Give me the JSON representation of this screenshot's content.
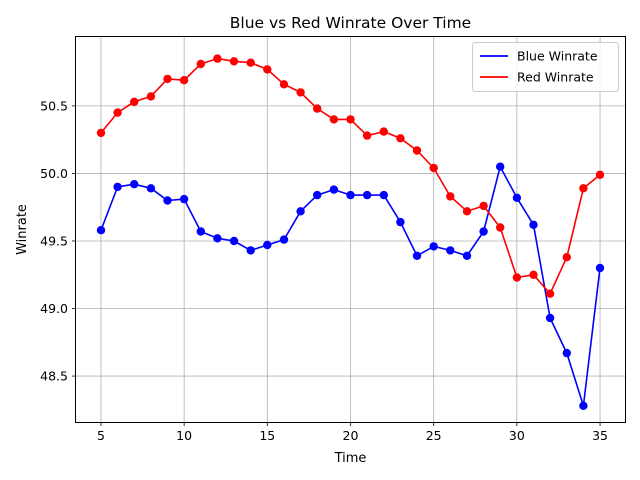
{
  "chart_data": {
    "type": "line",
    "title": "Blue vs Red Winrate Over Time",
    "xlabel": "Time",
    "ylabel": "Winrate",
    "xlim": [
      3.5,
      36.5
    ],
    "ylim": [
      48.16,
      51.01
    ],
    "xticks": [
      5,
      10,
      15,
      20,
      25,
      30,
      35
    ],
    "yticks": [
      48.5,
      49.0,
      49.5,
      50.0,
      50.5
    ],
    "grid": true,
    "legend_position": "top-right",
    "x": [
      5,
      6,
      7,
      8,
      9,
      10,
      11,
      12,
      13,
      14,
      15,
      16,
      17,
      18,
      19,
      20,
      21,
      22,
      23,
      24,
      25,
      26,
      27,
      28,
      29,
      30,
      31,
      32,
      33,
      34,
      35
    ],
    "series": [
      {
        "name": "Blue Winrate",
        "color": "#0000ff",
        "values": [
          49.58,
          49.9,
          49.92,
          49.89,
          49.8,
          49.81,
          49.57,
          49.52,
          49.5,
          49.43,
          49.47,
          49.51,
          49.72,
          49.84,
          49.88,
          49.84,
          49.84,
          49.84,
          49.64,
          49.39,
          49.46,
          49.43,
          49.39,
          49.57,
          50.05,
          49.82,
          49.62,
          48.93,
          48.67,
          48.28,
          49.3
        ]
      },
      {
        "name": "Red Winrate",
        "color": "#ff0000",
        "values": [
          50.3,
          50.45,
          50.53,
          50.57,
          50.7,
          50.69,
          50.81,
          50.85,
          50.83,
          50.82,
          50.77,
          50.66,
          50.6,
          50.48,
          50.4,
          50.4,
          50.28,
          50.31,
          50.26,
          50.17,
          50.04,
          49.83,
          49.72,
          49.76,
          49.6,
          49.23,
          49.25,
          49.11,
          49.38,
          49.89,
          49.99
        ]
      }
    ]
  }
}
